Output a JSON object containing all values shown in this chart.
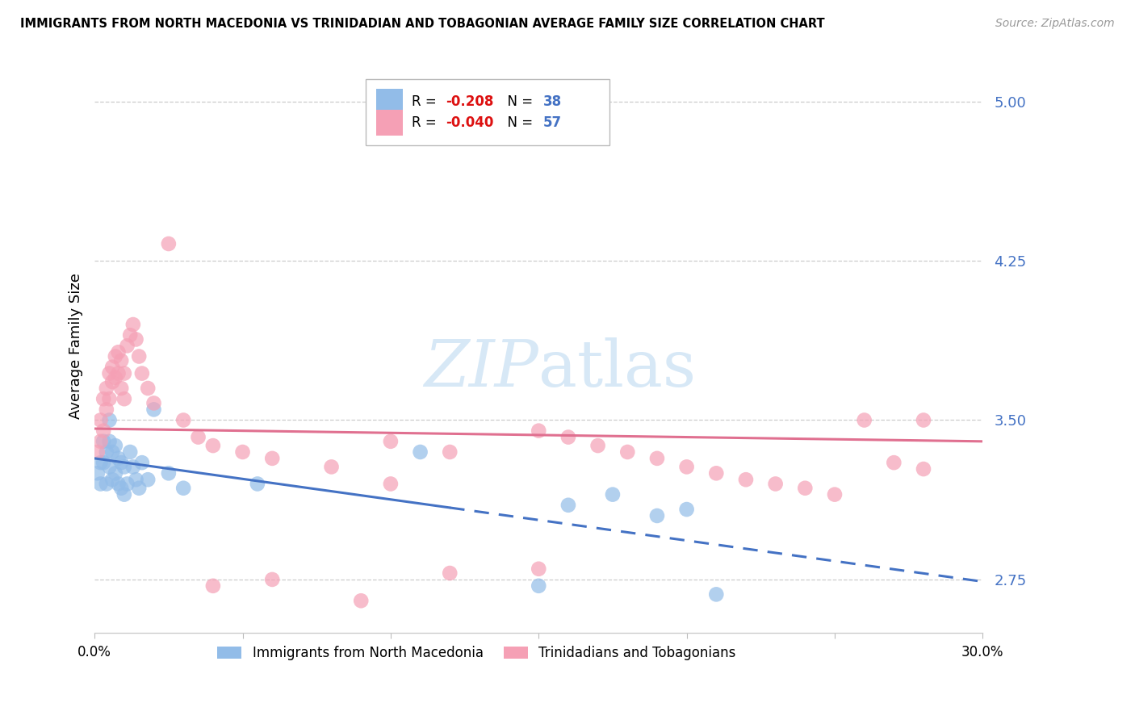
{
  "title": "IMMIGRANTS FROM NORTH MACEDONIA VS TRINIDADIAN AND TOBAGONIAN AVERAGE FAMILY SIZE CORRELATION CHART",
  "source": "Source: ZipAtlas.com",
  "ylabel": "Average Family Size",
  "xlim": [
    0.0,
    0.3
  ],
  "ylim": [
    2.5,
    5.2
  ],
  "yticks": [
    2.75,
    3.5,
    4.25,
    5.0
  ],
  "xticks": [
    0.0,
    0.05,
    0.1,
    0.15,
    0.2,
    0.25,
    0.3
  ],
  "xtick_labels": [
    "0.0%",
    "",
    "",
    "",
    "",
    "",
    "30.0%"
  ],
  "series1_color": "#92bce8",
  "series2_color": "#f5a0b5",
  "line1_color": "#4472c4",
  "line2_color": "#e07090",
  "text_color": "#4472c4",
  "watermark_color": "#d0e4f5",
  "scatter1_x": [
    0.001,
    0.002,
    0.002,
    0.003,
    0.003,
    0.004,
    0.004,
    0.005,
    0.005,
    0.005,
    0.006,
    0.006,
    0.007,
    0.007,
    0.008,
    0.008,
    0.009,
    0.009,
    0.01,
    0.01,
    0.011,
    0.012,
    0.013,
    0.014,
    0.015,
    0.016,
    0.018,
    0.02,
    0.025,
    0.03,
    0.055,
    0.11,
    0.15,
    0.16,
    0.175,
    0.19,
    0.2,
    0.21
  ],
  "scatter1_y": [
    3.25,
    3.3,
    3.2,
    3.4,
    3.3,
    3.35,
    3.2,
    3.5,
    3.4,
    3.28,
    3.35,
    3.22,
    3.38,
    3.25,
    3.32,
    3.2,
    3.3,
    3.18,
    3.28,
    3.15,
    3.2,
    3.35,
    3.28,
    3.22,
    3.18,
    3.3,
    3.22,
    3.55,
    3.25,
    3.18,
    3.2,
    3.35,
    2.72,
    3.1,
    3.15,
    3.05,
    3.08,
    2.68
  ],
  "scatter2_x": [
    0.001,
    0.002,
    0.002,
    0.003,
    0.003,
    0.004,
    0.004,
    0.005,
    0.005,
    0.006,
    0.006,
    0.007,
    0.007,
    0.008,
    0.008,
    0.009,
    0.009,
    0.01,
    0.01,
    0.011,
    0.012,
    0.013,
    0.014,
    0.015,
    0.016,
    0.018,
    0.02,
    0.025,
    0.03,
    0.035,
    0.04,
    0.05,
    0.06,
    0.08,
    0.1,
    0.12,
    0.15,
    0.16,
    0.17,
    0.18,
    0.19,
    0.2,
    0.21,
    0.22,
    0.23,
    0.24,
    0.25,
    0.26,
    0.27,
    0.28,
    0.12,
    0.15,
    0.28,
    0.1,
    0.09,
    0.06,
    0.04
  ],
  "scatter2_y": [
    3.35,
    3.4,
    3.5,
    3.45,
    3.6,
    3.65,
    3.55,
    3.6,
    3.72,
    3.68,
    3.75,
    3.8,
    3.7,
    3.82,
    3.72,
    3.78,
    3.65,
    3.72,
    3.6,
    3.85,
    3.9,
    3.95,
    3.88,
    3.8,
    3.72,
    3.65,
    3.58,
    4.33,
    3.5,
    3.42,
    3.38,
    3.35,
    3.32,
    3.28,
    3.4,
    3.35,
    3.45,
    3.42,
    3.38,
    3.35,
    3.32,
    3.28,
    3.25,
    3.22,
    3.2,
    3.18,
    3.15,
    3.5,
    3.3,
    3.27,
    2.78,
    2.8,
    3.5,
    3.2,
    2.65,
    2.75,
    2.72
  ],
  "R1": "-0.208",
  "N1": "38",
  "R2": "-0.040",
  "N2": "57",
  "legend1_label": "Immigrants from North Macedonia",
  "legend2_label": "Trinidadians and Tobagonians"
}
